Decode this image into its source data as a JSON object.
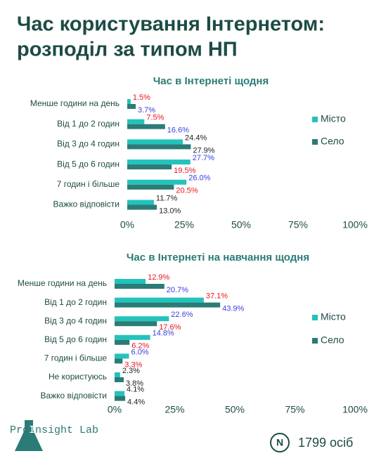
{
  "title": [
    "Час користування Інтернетом:",
    "розподіл за типом НП"
  ],
  "chart_data": [
    {
      "type": "bar",
      "orientation": "horizontal",
      "title": "Час в Інтернеті щодня",
      "categories": [
        "Менше години на день",
        "Від 1 до 2 годин",
        "Від 3 до 4 годин",
        "Від 5 до 6 годин",
        "7 годин і більше",
        "Важко відповісти"
      ],
      "series": [
        {
          "name": "Місто",
          "color": "#22c3bb",
          "values": [
            1.5,
            7.5,
            24.4,
            27.7,
            26.0,
            11.7
          ],
          "value_labels": [
            "1.5%",
            "7.5%",
            "24.4%",
            "27.7%",
            "26.0%",
            "11.7%"
          ],
          "value_label_colors": [
            "#e8141c",
            "#e8141c",
            "#222222",
            "#3a3ee0",
            "#3a3ee0",
            "#222222"
          ]
        },
        {
          "name": "Село",
          "color": "#2b7b76",
          "values": [
            3.7,
            16.6,
            27.9,
            19.5,
            20.5,
            13.0
          ],
          "value_labels": [
            "3.7%",
            "16.6%",
            "27.9%",
            "19.5%",
            "20.5%",
            "13.0%"
          ],
          "value_label_colors": [
            "#3a3ee0",
            "#3a3ee0",
            "#222222",
            "#e8141c",
            "#e8141c",
            "#222222"
          ]
        }
      ],
      "xlim": [
        0,
        100
      ],
      "xticks": [
        {
          "value": 0,
          "label": "0%"
        },
        {
          "value": 25,
          "label": "25%"
        },
        {
          "value": 50,
          "label": "50%"
        },
        {
          "value": 75,
          "label": "75%"
        },
        {
          "value": 100,
          "label": "100%"
        }
      ],
      "legend": "right"
    },
    {
      "type": "bar",
      "orientation": "horizontal",
      "title": "Час в Інтернеті на навчання щодня",
      "categories": [
        "Менше години на день",
        "Від 1 до 2 годин",
        "Від 3 до 4 годин",
        "Від 5 до 6 годин",
        "7 годин і більше",
        "Не користуюсь",
        "Важко відповісти"
      ],
      "series": [
        {
          "name": "Місто",
          "color": "#22c3bb",
          "values": [
            12.9,
            37.1,
            22.6,
            14.8,
            6.0,
            2.3,
            4.1
          ],
          "value_labels": [
            "12.9%",
            "37.1%",
            "22.6%",
            "14.8%",
            "6.0%",
            "2.3%",
            "4.1%"
          ],
          "value_label_colors": [
            "#e8141c",
            "#e8141c",
            "#3a3ee0",
            "#3a3ee0",
            "#3a3ee0",
            "#222222",
            "#222222"
          ]
        },
        {
          "name": "Село",
          "color": "#2b7b76",
          "values": [
            20.7,
            43.9,
            17.6,
            6.2,
            3.3,
            3.8,
            4.4
          ],
          "value_labels": [
            "20.7%",
            "43.9%",
            "17.6%",
            "6.2%",
            "3.3%",
            "3.8%",
            "4.4%"
          ],
          "value_label_colors": [
            "#3a3ee0",
            "#3a3ee0",
            "#e8141c",
            "#e8141c",
            "#e8141c",
            "#222222",
            "#222222"
          ]
        }
      ],
      "xlim": [
        0,
        100
      ],
      "xticks": [
        {
          "value": 0,
          "label": "0%"
        },
        {
          "value": 25,
          "label": "25%"
        },
        {
          "value": 50,
          "label": "50%"
        },
        {
          "value": 75,
          "label": "75%"
        },
        {
          "value": 100,
          "label": "100%"
        }
      ],
      "legend": "right"
    }
  ],
  "logo": {
    "prefix": "Pro",
    "highlight": "I",
    "rest": "nsight Lab"
  },
  "sample": {
    "badge": "N",
    "text": "1799 осіб"
  }
}
